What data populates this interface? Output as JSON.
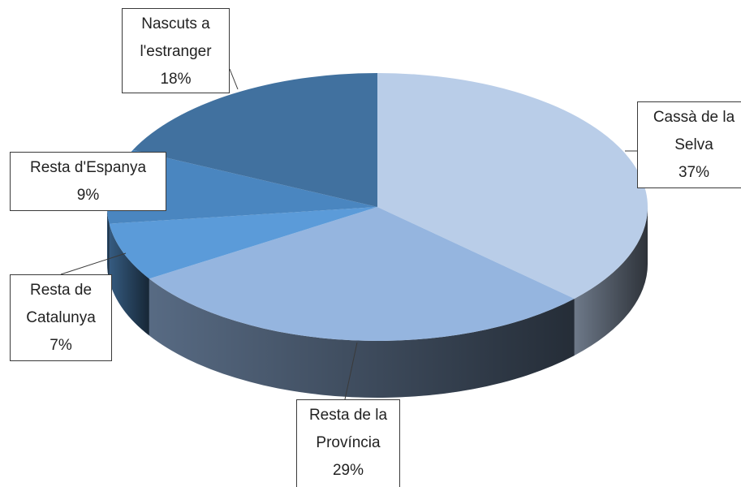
{
  "chart_data": {
    "type": "pie",
    "categories": [
      "Cassà de la Selva",
      "Resta de la Província",
      "Resta de Catalunya",
      "Resta d'Espanya",
      "Nascuts a l'estranger"
    ],
    "values": [
      37,
      29,
      7,
      9,
      18
    ],
    "value_labels": [
      "37%",
      "29%",
      "7%",
      "9%",
      "18%"
    ],
    "colors": [
      "#b9cde8",
      "#95b5df",
      "#5b9bd9",
      "#4a86c0",
      "#41719f"
    ]
  }
}
